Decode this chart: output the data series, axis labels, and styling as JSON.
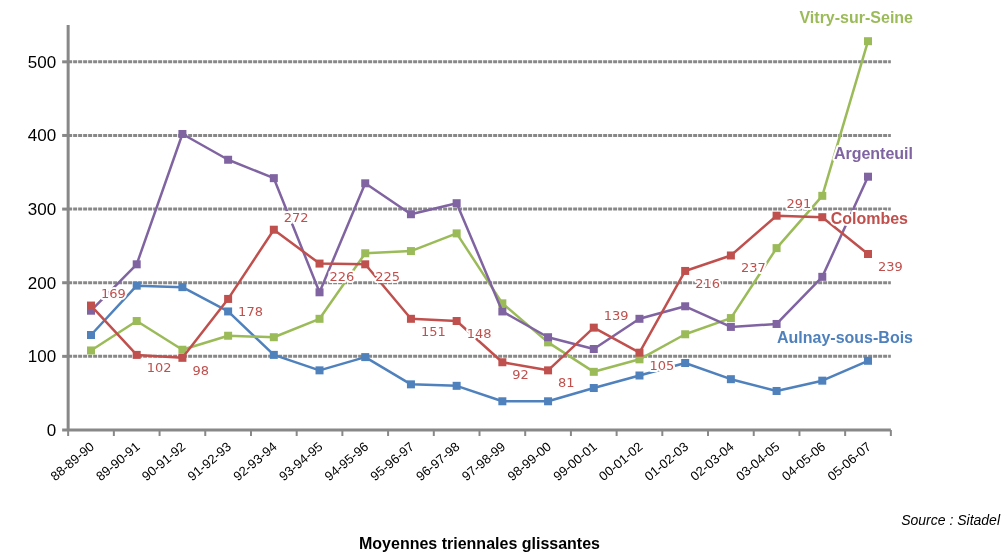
{
  "chart_data": {
    "type": "line",
    "xlabel": "Moyennes triennales glissantes",
    "annotations": [
      "Source : Sitadel"
    ],
    "categories": [
      "88-89-90",
      "89-90-91",
      "90-91-92",
      "91-92-93",
      "92-93-94",
      "93-94-95",
      "94-95-96",
      "95-96-97",
      "96-97-98",
      "97-98-99",
      "98-99-00",
      "99-00-01",
      "00-01-02",
      "01-02-03",
      "02-03-04",
      "03-04-05",
      "04-05-06",
      "05-06-07"
    ],
    "ylim": [
      0,
      550
    ],
    "yticks": [
      0,
      100,
      200,
      300,
      400,
      500
    ],
    "grid": "y",
    "legend": false,
    "marker": "square",
    "line_style": "solid",
    "series": [
      {
        "name": "Aulnay-sous-Bois",
        "color": "#4f81bd",
        "values": [
          129,
          196,
          194,
          161,
          102,
          81,
          99,
          62,
          60,
          39,
          39,
          57,
          74,
          91,
          69,
          53,
          67,
          94
        ]
      },
      {
        "name": "Vitry-sur-Seine",
        "color": "#9bbb59",
        "values": [
          108,
          148,
          109,
          128,
          126,
          151,
          240,
          243,
          267,
          172,
          119,
          79,
          96,
          130,
          152,
          247,
          318,
          528
        ]
      },
      {
        "name": "Argenteuil",
        "color": "#8064a2",
        "values": [
          162,
          225,
          402,
          367,
          342,
          187,
          335,
          293,
          308,
          161,
          126,
          110,
          151,
          168,
          140,
          144,
          208,
          344
        ]
      },
      {
        "name": "Colombes",
        "color": "#c0504d",
        "values": [
          169,
          102,
          98,
          178,
          272,
          226,
          225,
          151,
          148,
          92,
          81,
          139,
          105,
          216,
          237,
          291,
          289,
          239
        ],
        "value_labels": [
          "169",
          "102",
          "98",
          "178",
          "272",
          "226",
          "225",
          "151",
          "148",
          "92",
          "81",
          "139",
          "105",
          "216",
          "237",
          "291",
          null,
          "239"
        ]
      }
    ]
  }
}
